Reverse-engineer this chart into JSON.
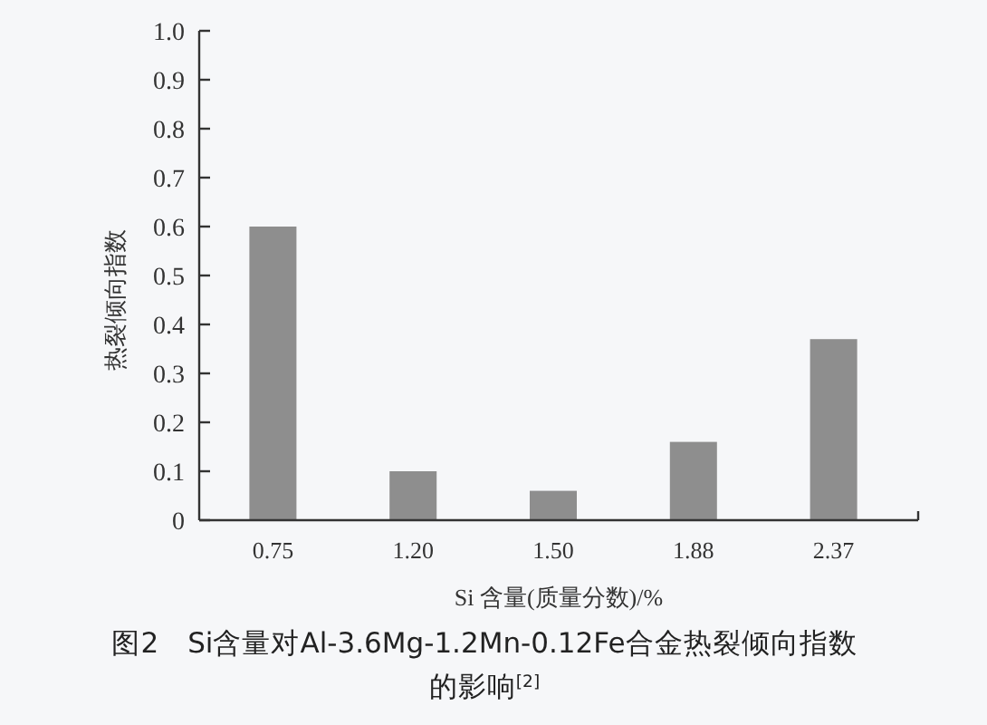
{
  "chart_data": {
    "type": "bar",
    "categories": [
      "0.75",
      "1.20",
      "1.50",
      "1.88",
      "2.37"
    ],
    "values": [
      0.6,
      0.1,
      0.06,
      0.16,
      0.37
    ],
    "color": "#8e8e8e",
    "ylim": [
      0,
      1.0
    ],
    "yticks": [
      0,
      {
        "value": 0.1,
        "label": "0.1"
      },
      {
        "value": 0.2,
        "label": "0.2"
      },
      {
        "value": 0.3,
        "label": "0.3"
      },
      {
        "value": 0.4,
        "label": "0.4"
      },
      {
        "value": 0.5,
        "label": "0.5"
      },
      {
        "value": 0.6,
        "label": "0.6"
      },
      {
        "value": 0.7,
        "label": "0.7"
      },
      {
        "value": 0.8,
        "label": "0.8"
      },
      {
        "value": 0.9,
        "label": "0.9"
      },
      {
        "value": 1.0,
        "label": "1.0"
      }
    ],
    "xlabel": "Si 含量(质量分数)/%",
    "ylabel": "热裂倾向指数",
    "annotations": [
      "图2　Si含量对Al-3.6Mg-1.2Mn-0.12Fe合金热裂倾向指数的影响$^{[2]}$"
    ]
  }
}
